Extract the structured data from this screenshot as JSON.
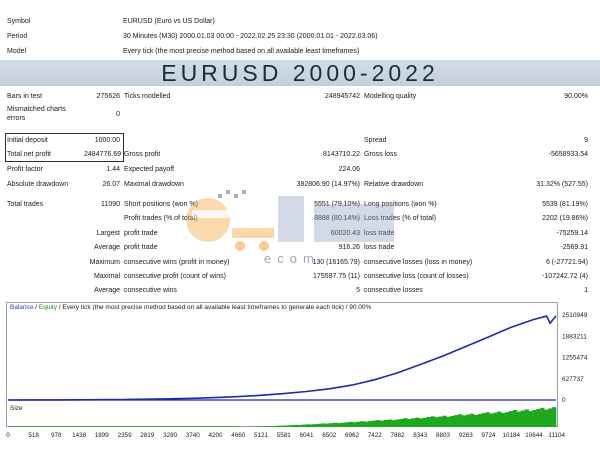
{
  "header": {
    "rows": [
      {
        "label": "Symbol",
        "value": "EURUSD (Euro vs US Dollar)"
      },
      {
        "label": "Period",
        "value": "30 Minutes (M30) 2000.01.03 00:00 - 2022.02.25 23:30 (2000.01.01 - 2022.03.06)"
      },
      {
        "label": "Model",
        "value": "Every tick (the most precise method based on all available least timeframes)"
      }
    ]
  },
  "banner": {
    "title": "EURUSD 2000-2022"
  },
  "stats": {
    "bars_in_test_label": "Bars in test",
    "bars_in_test_value": "275626",
    "ticks_modelled_label": "Ticks modelled",
    "ticks_modelled_value": "248945742",
    "modelling_quality_label": "Modelling quality",
    "modelling_quality_value": "90.00%",
    "mismatched_label_1": "Mismatched charts",
    "mismatched_label_2": "errors",
    "mismatched_value": "0",
    "initial_deposit_label": "Initial deposit",
    "initial_deposit_value": "1000.00",
    "spread_label": "Spread",
    "spread_value": "9",
    "net_profit_label": "Total net profit",
    "net_profit_value": "2484776.69",
    "gross_profit_label": "Gross profit",
    "gross_profit_value": "8143710.22",
    "gross_loss_label": "Gross loss",
    "gross_loss_value": "-5658933.54",
    "profit_factor_label": "Profit factor",
    "profit_factor_value": "1.44",
    "expected_payoff_label": "Expected payoff",
    "expected_payoff_value": "224.06",
    "abs_dd_label": "Absolute drawdown",
    "abs_dd_value": "26.07",
    "max_dd_label": "Maximal drawdown",
    "max_dd_value": "382806.90 (14.97%)",
    "rel_dd_label": "Relative drawdown",
    "rel_dd_value": "31.32% (527.55)",
    "total_trades_label": "Total trades",
    "total_trades_value": "11090",
    "short_pos_label": "Short positions (won %)",
    "short_pos_value": "5551 (79.10%)",
    "long_pos_label": "Long positions (won %)",
    "long_pos_value": "5539 (81.19%)",
    "profit_trades_label": "Profit trades (% of total)",
    "profit_trades_value": "8888 (80.14%)",
    "loss_trades_label": "Loss trades (% of total)",
    "loss_trades_value": "2202 (19.86%)",
    "largest_label": "Largest",
    "largest_profit_label": "profit trade",
    "largest_profit_value": "60020.43",
    "largest_loss_label": "loss trade",
    "largest_loss_value": "-75259.14",
    "average_label": "Average",
    "average_profit_label": "profit trade",
    "average_profit_value": "916.26",
    "average_loss_label": "loss trade",
    "average_loss_value": "-2569.91",
    "maximum_label": "Maximum",
    "max_cons_wins_label": "consecutive wins (profit in money)",
    "max_cons_wins_value": "130 (16165.79)",
    "max_cons_losses_label": "consecutive losses (loss in money)",
    "max_cons_losses_value": "6 (-27721.94)",
    "maximal_label": "Maximal",
    "maximal_cons_profit_label": "consecutive profit (count of wins)",
    "maximal_cons_profit_value": "175597.75 (11)",
    "maximal_cons_loss_label": "consecutive loss (count of losses)",
    "maximal_cons_loss_value": "-107242.72 (4)",
    "average2_label": "Average",
    "avg_cons_wins_label": "consecutive wins",
    "avg_cons_wins_value": "5",
    "avg_cons_losses_label": "consecutive losses",
    "avg_cons_losses_value": "1"
  },
  "watermark": {
    "text": "ecom"
  },
  "chart": {
    "legend_balance": "Balance",
    "legend_sep": " / ",
    "legend_equity": "Equity",
    "legend_rest": " / Every tick (the most precise method based on all available least timeframes to generate each tick) / 90.00%",
    "size_label": "Size",
    "colors": {
      "balance": "#1c2aa8",
      "equity": "#1c2aa8",
      "size": "#1fa81f",
      "legend_balance": "#1a3fbf",
      "legend_equity": "#1a8a1a"
    }
  },
  "chart_data": {
    "type": "line",
    "title": "",
    "xlabel": "",
    "ylabel": "",
    "x_ticks": [
      0,
      518,
      978,
      1438,
      1899,
      2359,
      2819,
      3280,
      3740,
      4200,
      4660,
      5121,
      5581,
      6041,
      6502,
      6962,
      7422,
      7882,
      8343,
      8803,
      9263,
      9724,
      10184,
      10644,
      11104
    ],
    "y_ticks": [
      2510949,
      1883211,
      1255474,
      627737,
      0
    ],
    "xlim": [
      0,
      11090
    ],
    "ylim": [
      0,
      2600000
    ],
    "series": [
      {
        "x": [
          0,
          518,
          978,
          1438,
          1899,
          2359,
          2819,
          3280,
          3740,
          4200,
          4660,
          5121,
          5581,
          6041,
          6502,
          6962,
          7422,
          7882,
          8343,
          8803,
          9263,
          9724,
          10184,
          10644,
          10900,
          10970,
          11090
        ],
        "values": [
          1000,
          2000,
          3500,
          6000,
          10000,
          16000,
          24000,
          35000,
          50000,
          72000,
          100000,
          140000,
          190000,
          250000,
          330000,
          440000,
          600000,
          800000,
          1050000,
          1300000,
          1580000,
          1860000,
          2150000,
          2380000,
          2480000,
          2270000,
          2484777
        ]
      }
    ]
  }
}
